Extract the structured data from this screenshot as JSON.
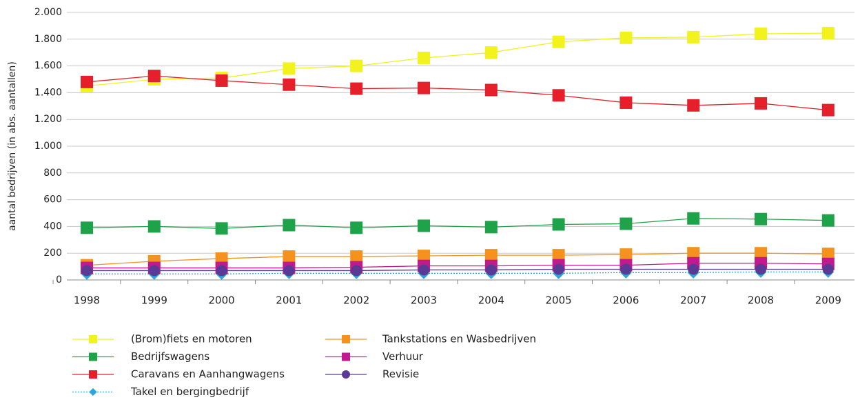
{
  "chart_data": {
    "type": "line",
    "y_label": "aantal bedrijven (in abs. aantallen)",
    "categories": [
      "1998",
      "1999",
      "2000",
      "2001",
      "2002",
      "2003",
      "2004",
      "2005",
      "2006",
      "2007",
      "2008",
      "2009"
    ],
    "ylim": [
      0,
      2000
    ],
    "yticks": [
      0,
      200,
      400,
      600,
      800,
      {
        "value": 1000,
        "label": "1.000"
      },
      {
        "value": 1200,
        "label": "1.200"
      },
      {
        "value": 1400,
        "label": "1.400"
      },
      {
        "value": 1600,
        "label": "1.600"
      },
      {
        "value": 1800,
        "label": "1.800"
      },
      {
        "value": 2000,
        "label": "2.000"
      }
    ],
    "grid": true,
    "legend": "bottom",
    "series": [
      {
        "name": "(Brom)fiets en motoren",
        "color": "#f2f21c",
        "marker": "square",
        "values": [
          1450,
          1500,
          1510,
          1580,
          1600,
          1660,
          1700,
          1780,
          1810,
          1815,
          1840,
          1845
        ]
      },
      {
        "name": "Bedrijfswagens",
        "color": "#1ea34a",
        "marker": "square",
        "values": [
          390,
          400,
          385,
          410,
          390,
          405,
          395,
          415,
          420,
          460,
          455,
          445
        ]
      },
      {
        "name": "Caravans en Aanhangwagens",
        "color": "#e5202a",
        "marker": "square",
        "values": [
          1480,
          1525,
          1490,
          1460,
          1430,
          1435,
          1420,
          1380,
          1325,
          1305,
          1320,
          1270
        ]
      },
      {
        "name": "Takel en bergingbedrijf",
        "color": "#2aa6de",
        "marker": "diamond",
        "dash": true,
        "values": [
          45,
          45,
          45,
          50,
          50,
          50,
          50,
          50,
          55,
          55,
          60,
          60
        ]
      },
      {
        "name": "Tankstations en Wasbedrijven",
        "color": "#f5921e",
        "marker": "square",
        "values": [
          110,
          140,
          160,
          175,
          175,
          180,
          185,
          185,
          190,
          200,
          200,
          195
        ]
      },
      {
        "name": "Verhuur",
        "color": "#c21a8e",
        "marker": "square",
        "values": [
          90,
          90,
          90,
          90,
          95,
          105,
          105,
          110,
          110,
          125,
          125,
          120
        ]
      },
      {
        "name": "Revisie",
        "color": "#5a3a94",
        "marker": "circle",
        "values": [
          70,
          70,
          70,
          70,
          70,
          75,
          75,
          80,
          80,
          80,
          80,
          80
        ]
      }
    ]
  }
}
